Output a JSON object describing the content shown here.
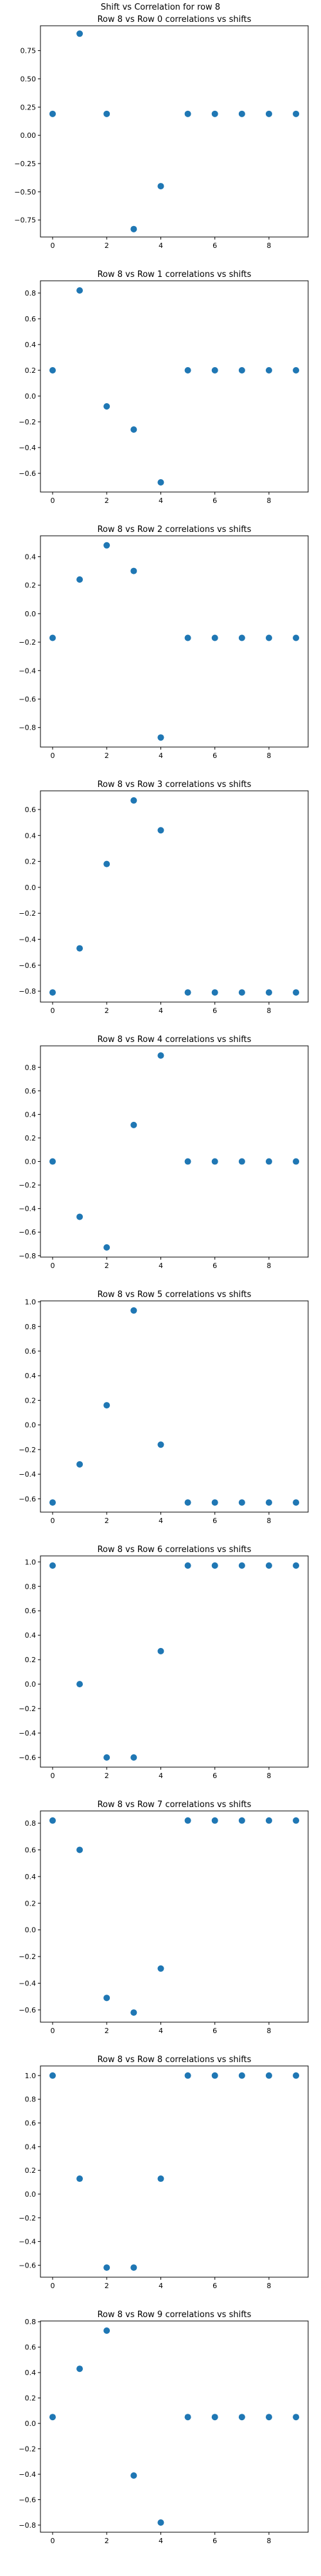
{
  "figure": {
    "suptitle": "Shift vs Correlation for row 8"
  },
  "colors": {
    "marker": "#1f77b4",
    "axis": "#000000",
    "background": "#ffffff"
  },
  "chart_data": [
    {
      "type": "scatter",
      "title": "Row 8 vs Row 0 correlations vs shifts",
      "x": [
        0,
        1,
        2,
        3,
        4,
        5,
        6,
        7,
        8,
        9
      ],
      "y": [
        0.19,
        0.9,
        0.19,
        -0.83,
        -0.45,
        0.19,
        0.19,
        0.19,
        0.19,
        0.19
      ],
      "xlim": [
        -0.45,
        9.45
      ],
      "ylim": [
        -0.9,
        0.97
      ],
      "xticks": [
        0,
        2,
        4,
        6,
        8
      ],
      "yticks": [
        0.75,
        0.5,
        0.25,
        0.0,
        -0.25,
        -0.5,
        -0.75
      ],
      "ytick_labels": [
        "0.75",
        "0.50",
        "0.25",
        "0.00",
        "−0.25",
        "−0.50",
        "−0.75"
      ],
      "grid": false,
      "legend": "none"
    },
    {
      "type": "scatter",
      "title": "Row 8 vs Row 1 correlations vs shifts",
      "x": [
        0,
        1,
        2,
        3,
        4,
        5,
        6,
        7,
        8,
        9
      ],
      "y": [
        0.2,
        0.82,
        -0.08,
        -0.26,
        -0.67,
        0.2,
        0.2,
        0.2,
        0.2,
        0.2
      ],
      "xlim": [
        -0.45,
        9.45
      ],
      "ylim": [
        -0.745,
        0.895
      ],
      "xticks": [
        0,
        2,
        4,
        6,
        8
      ],
      "yticks": [
        0.8,
        0.6,
        0.4,
        0.2,
        0.0,
        -0.2,
        -0.4,
        -0.6
      ],
      "ytick_labels": [
        "0.8",
        "0.6",
        "0.4",
        "0.2",
        "0.0",
        "−0.2",
        "−0.4",
        "−0.6"
      ],
      "grid": false,
      "legend": "none"
    },
    {
      "type": "scatter",
      "title": "Row 8 vs Row 2 correlations vs shifts",
      "x": [
        0,
        1,
        2,
        3,
        4,
        5,
        6,
        7,
        8,
        9
      ],
      "y": [
        -0.17,
        0.24,
        0.48,
        0.3,
        -0.87,
        -0.17,
        -0.17,
        -0.17,
        -0.17,
        -0.17
      ],
      "xlim": [
        -0.45,
        9.45
      ],
      "ylim": [
        -0.937,
        0.547
      ],
      "xticks": [
        0,
        2,
        4,
        6,
        8
      ],
      "yticks": [
        0.4,
        0.2,
        0.0,
        -0.2,
        -0.4,
        -0.6,
        -0.8
      ],
      "ytick_labels": [
        "0.4",
        "0.2",
        "0.0",
        "−0.2",
        "−0.4",
        "−0.6",
        "−0.8"
      ],
      "grid": false,
      "legend": "none"
    },
    {
      "type": "scatter",
      "title": "Row 8 vs Row 3 correlations vs shifts",
      "x": [
        0,
        1,
        2,
        3,
        4,
        5,
        6,
        7,
        8,
        9
      ],
      "y": [
        -0.81,
        -0.47,
        0.18,
        0.67,
        0.44,
        -0.81,
        -0.81,
        -0.81,
        -0.81,
        -0.81
      ],
      "xlim": [
        -0.45,
        9.45
      ],
      "ylim": [
        -0.884,
        0.744
      ],
      "xticks": [
        0,
        2,
        4,
        6,
        8
      ],
      "yticks": [
        0.6,
        0.4,
        0.2,
        0.0,
        -0.2,
        -0.4,
        -0.6,
        -0.8
      ],
      "ytick_labels": [
        "0.6",
        "0.4",
        "0.2",
        "0.0",
        "−0.2",
        "−0.4",
        "−0.6",
        "−0.8"
      ],
      "grid": false,
      "legend": "none"
    },
    {
      "type": "scatter",
      "title": "Row 8 vs Row 4 correlations vs shifts",
      "x": [
        0,
        1,
        2,
        3,
        4,
        5,
        6,
        7,
        8,
        9
      ],
      "y": [
        0.0,
        -0.47,
        -0.73,
        0.31,
        0.9,
        0.0,
        0.0,
        0.0,
        0.0,
        0.0
      ],
      "xlim": [
        -0.45,
        9.45
      ],
      "ylim": [
        -0.812,
        0.982
      ],
      "xticks": [
        0,
        2,
        4,
        6,
        8
      ],
      "yticks": [
        0.8,
        0.6,
        0.4,
        0.2,
        0.0,
        -0.2,
        -0.4,
        -0.6,
        -0.8
      ],
      "ytick_labels": [
        "0.8",
        "0.6",
        "0.4",
        "0.2",
        "0.0",
        "−0.2",
        "−0.4",
        "−0.6",
        "−0.8"
      ],
      "grid": false,
      "legend": "none"
    },
    {
      "type": "scatter",
      "title": "Row 8 vs Row 5 correlations vs shifts",
      "x": [
        0,
        1,
        2,
        3,
        4,
        5,
        6,
        7,
        8,
        9
      ],
      "y": [
        -0.63,
        -0.32,
        0.16,
        0.93,
        -0.16,
        -0.63,
        -0.63,
        -0.63,
        -0.63,
        -0.63
      ],
      "xlim": [
        -0.45,
        9.45
      ],
      "ylim": [
        -0.708,
        1.008
      ],
      "xticks": [
        0,
        2,
        4,
        6,
        8
      ],
      "yticks": [
        1.0,
        0.8,
        0.6,
        0.4,
        0.2,
        0.0,
        -0.2,
        -0.4,
        -0.6
      ],
      "ytick_labels": [
        "1.0",
        "0.8",
        "0.6",
        "0.4",
        "0.2",
        "0.0",
        "−0.2",
        "−0.4",
        "−0.6"
      ],
      "grid": false,
      "legend": "none"
    },
    {
      "type": "scatter",
      "title": "Row 8 vs Row 6 correlations vs shifts",
      "x": [
        0,
        1,
        2,
        3,
        4,
        5,
        6,
        7,
        8,
        9
      ],
      "y": [
        0.97,
        0.0,
        -0.6,
        -0.6,
        0.27,
        0.97,
        0.97,
        0.97,
        0.97,
        0.97
      ],
      "xlim": [
        -0.45,
        9.45
      ],
      "ylim": [
        -0.679,
        1.049
      ],
      "xticks": [
        0,
        2,
        4,
        6,
        8
      ],
      "yticks": [
        1.0,
        0.8,
        0.6,
        0.4,
        0.2,
        0.0,
        -0.2,
        -0.4,
        -0.6
      ],
      "ytick_labels": [
        "1.0",
        "0.8",
        "0.6",
        "0.4",
        "0.2",
        "0.0",
        "−0.2",
        "−0.4",
        "−0.6"
      ],
      "grid": false,
      "legend": "none"
    },
    {
      "type": "scatter",
      "title": "Row 8 vs Row 7 correlations vs shifts",
      "x": [
        0,
        1,
        2,
        3,
        4,
        5,
        6,
        7,
        8,
        9
      ],
      "y": [
        0.82,
        0.6,
        -0.51,
        -0.62,
        -0.29,
        0.82,
        0.82,
        0.82,
        0.82,
        0.82
      ],
      "xlim": [
        -0.45,
        9.45
      ],
      "ylim": [
        -0.692,
        0.892
      ],
      "xticks": [
        0,
        2,
        4,
        6,
        8
      ],
      "yticks": [
        0.8,
        0.6,
        0.4,
        0.2,
        0.0,
        -0.2,
        -0.4,
        -0.6
      ],
      "ytick_labels": [
        "0.8",
        "0.6",
        "0.4",
        "0.2",
        "0.0",
        "−0.2",
        "−0.4",
        "−0.6"
      ],
      "grid": false,
      "legend": "none"
    },
    {
      "type": "scatter",
      "title": "Row 8 vs Row 8 correlations vs shifts",
      "x": [
        0,
        1,
        2,
        3,
        4,
        5,
        6,
        7,
        8,
        9
      ],
      "y": [
        1.0,
        0.13,
        -0.62,
        -0.62,
        0.13,
        1.0,
        1.0,
        1.0,
        1.0,
        1.0
      ],
      "xlim": [
        -0.45,
        9.45
      ],
      "ylim": [
        -0.701,
        1.081
      ],
      "xticks": [
        0,
        2,
        4,
        6,
        8
      ],
      "yticks": [
        1.0,
        0.8,
        0.6,
        0.4,
        0.2,
        0.0,
        -0.2,
        -0.4,
        -0.6
      ],
      "ytick_labels": [
        "1.0",
        "0.8",
        "0.6",
        "0.4",
        "0.2",
        "0.0",
        "−0.2",
        "−0.4",
        "−0.6"
      ],
      "grid": false,
      "legend": "none"
    },
    {
      "type": "scatter",
      "title": "Row 8 vs Row 9 correlations vs shifts",
      "x": [
        0,
        1,
        2,
        3,
        4,
        5,
        6,
        7,
        8,
        9
      ],
      "y": [
        0.05,
        0.43,
        0.73,
        -0.41,
        -0.78,
        0.05,
        0.05,
        0.05,
        0.05,
        0.05
      ],
      "xlim": [
        -0.45,
        9.45
      ],
      "ylim": [
        -0.856,
        0.806
      ],
      "xticks": [
        0,
        2,
        4,
        6,
        8
      ],
      "yticks": [
        0.8,
        0.6,
        0.4,
        0.2,
        0.0,
        -0.2,
        -0.4,
        -0.6,
        -0.8
      ],
      "ytick_labels": [
        "0.8",
        "0.6",
        "0.4",
        "0.2",
        "0.0",
        "−0.2",
        "−0.4",
        "−0.6",
        "−0.8"
      ],
      "grid": false,
      "legend": "none"
    }
  ]
}
